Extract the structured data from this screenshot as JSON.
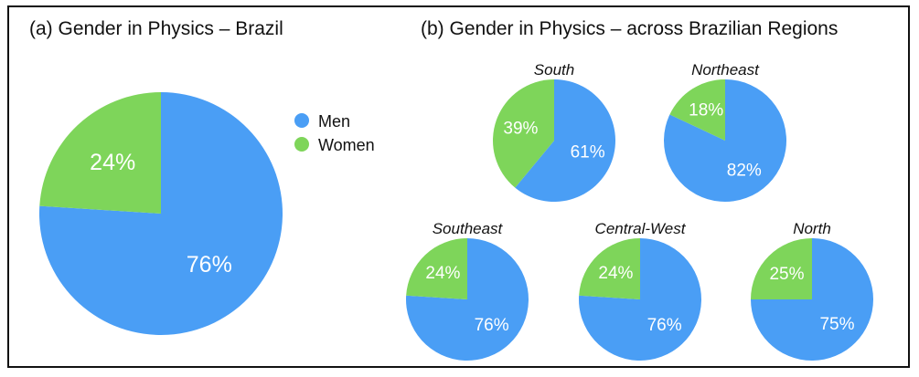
{
  "colors": {
    "men": "#4A9EF5",
    "women": "#7ED55A"
  },
  "legend": {
    "men_label": "Men",
    "women_label": "Women"
  },
  "chart_data": [
    {
      "type": "pie",
      "title": "(a) Gender in Physics – Brazil",
      "slices": [
        {
          "name": "Men",
          "value": 76,
          "label": "76%"
        },
        {
          "name": "Women",
          "value": 24,
          "label": "24%"
        }
      ]
    },
    {
      "type": "pie",
      "title": "(b) Gender in Physics – across Brazilian Regions",
      "regions": [
        {
          "name": "South",
          "men": 61,
          "women": 39,
          "men_label": "61%",
          "women_label": "39%"
        },
        {
          "name": "Northeast",
          "men": 82,
          "women": 18,
          "men_label": "82%",
          "women_label": "18%"
        },
        {
          "name": "Southeast",
          "men": 76,
          "women": 24,
          "men_label": "76%",
          "women_label": "24%"
        },
        {
          "name": "Central-West",
          "men": 76,
          "women": 24,
          "men_label": "76%",
          "women_label": "24%"
        },
        {
          "name": "North",
          "men": 75,
          "women": 25,
          "men_label": "75%",
          "women_label": "25%"
        }
      ]
    }
  ]
}
